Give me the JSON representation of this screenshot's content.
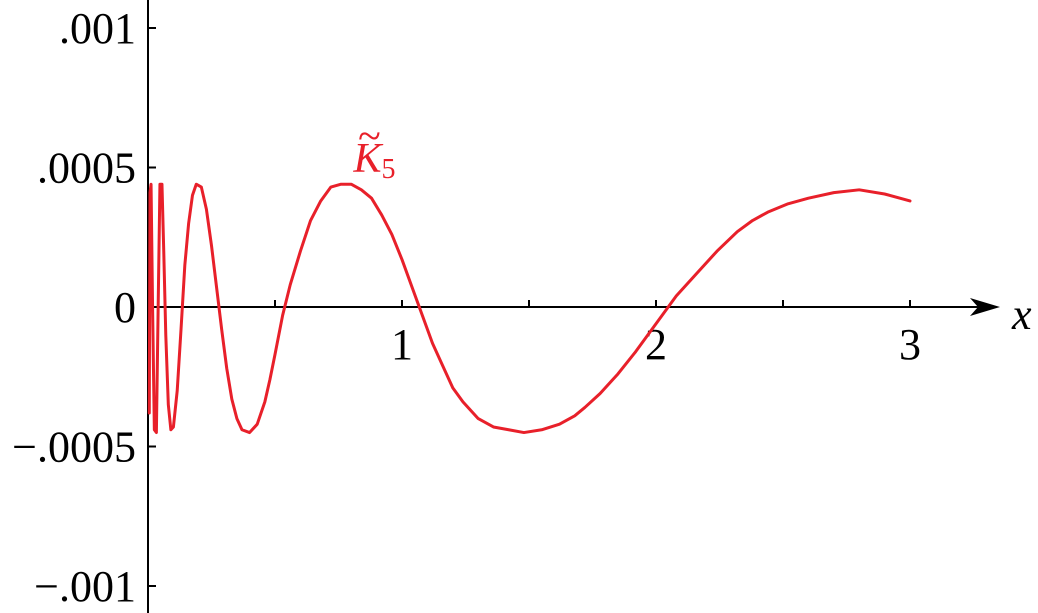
{
  "chart_data": {
    "type": "line",
    "title": "",
    "xlabel": "x",
    "ylabel": "",
    "xlim": [
      0,
      3.4
    ],
    "ylim": [
      -0.0011,
      0.0011
    ],
    "x_ticks": [
      {
        "value": 0.5,
        "label": ""
      },
      {
        "value": 1,
        "label": "1"
      },
      {
        "value": 1.5,
        "label": ""
      },
      {
        "value": 2,
        "label": "2"
      },
      {
        "value": 2.5,
        "label": ""
      },
      {
        "value": 3,
        "label": "3"
      }
    ],
    "y_ticks": [
      {
        "value": 0.001,
        "label": ".001"
      },
      {
        "value": 0.0005,
        "label": ".0005"
      },
      {
        "value": 0,
        "label": "0"
      },
      {
        "value": -0.0005,
        "label": "−.0005"
      },
      {
        "value": -0.001,
        "label": "−.001"
      }
    ],
    "grid": false,
    "legend": "none",
    "series": [
      {
        "label_base": "K",
        "label_accent": "~",
        "label_sub": "5",
        "color": "#e8202a",
        "x": [
          0.005,
          0.008,
          0.012,
          0.018,
          0.025,
          0.033,
          0.04,
          0.047,
          0.055,
          0.062,
          0.07,
          0.08,
          0.09,
          0.1,
          0.115,
          0.13,
          0.145,
          0.16,
          0.175,
          0.19,
          0.21,
          0.23,
          0.25,
          0.27,
          0.29,
          0.31,
          0.33,
          0.35,
          0.37,
          0.4,
          0.43,
          0.46,
          0.48,
          0.5,
          0.53,
          0.56,
          0.6,
          0.64,
          0.68,
          0.72,
          0.76,
          0.8,
          0.84,
          0.88,
          0.9,
          0.92,
          0.96,
          1.0,
          1.04,
          1.08,
          1.12,
          1.16,
          1.2,
          1.24,
          1.3,
          1.36,
          1.42,
          1.48,
          1.55,
          1.62,
          1.68,
          1.72,
          1.78,
          1.85,
          1.92,
          2.0,
          2.08,
          2.16,
          2.24,
          2.32,
          2.38,
          2.44,
          2.52,
          2.6,
          2.7,
          2.8,
          2.9,
          3.0
        ],
        "y": [
          -0.00038,
          0.00041,
          0.00044,
          0.0,
          -0.00044,
          -0.00045,
          0.0,
          0.00044,
          0.00044,
          0.0002,
          -0.0001,
          -0.00035,
          -0.00044,
          -0.00043,
          -0.0003,
          -8e-05,
          0.00015,
          0.0003,
          0.0004,
          0.00044,
          0.00043,
          0.00035,
          0.00022,
          7e-05,
          -8e-05,
          -0.00022,
          -0.00033,
          -0.0004,
          -0.00044,
          -0.00045,
          -0.00042,
          -0.00034,
          -0.00026,
          -0.00017,
          -3e-05,
          8e-05,
          0.0002,
          0.00031,
          0.00038,
          0.00043,
          0.00044,
          0.00044,
          0.00042,
          0.00039,
          0.00036,
          0.00033,
          0.00026,
          0.00017,
          7e-05,
          -3e-05,
          -0.00013,
          -0.00021,
          -0.00029,
          -0.00034,
          -0.0004,
          -0.00043,
          -0.00044,
          -0.00045,
          -0.00044,
          -0.00042,
          -0.00039,
          -0.00036,
          -0.00031,
          -0.00024,
          -0.00016,
          -6e-05,
          4e-05,
          0.00012,
          0.0002,
          0.00027,
          0.00031,
          0.00034,
          0.00037,
          0.00039,
          0.00041,
          0.00042,
          0.000405,
          0.00038
        ]
      }
    ]
  }
}
